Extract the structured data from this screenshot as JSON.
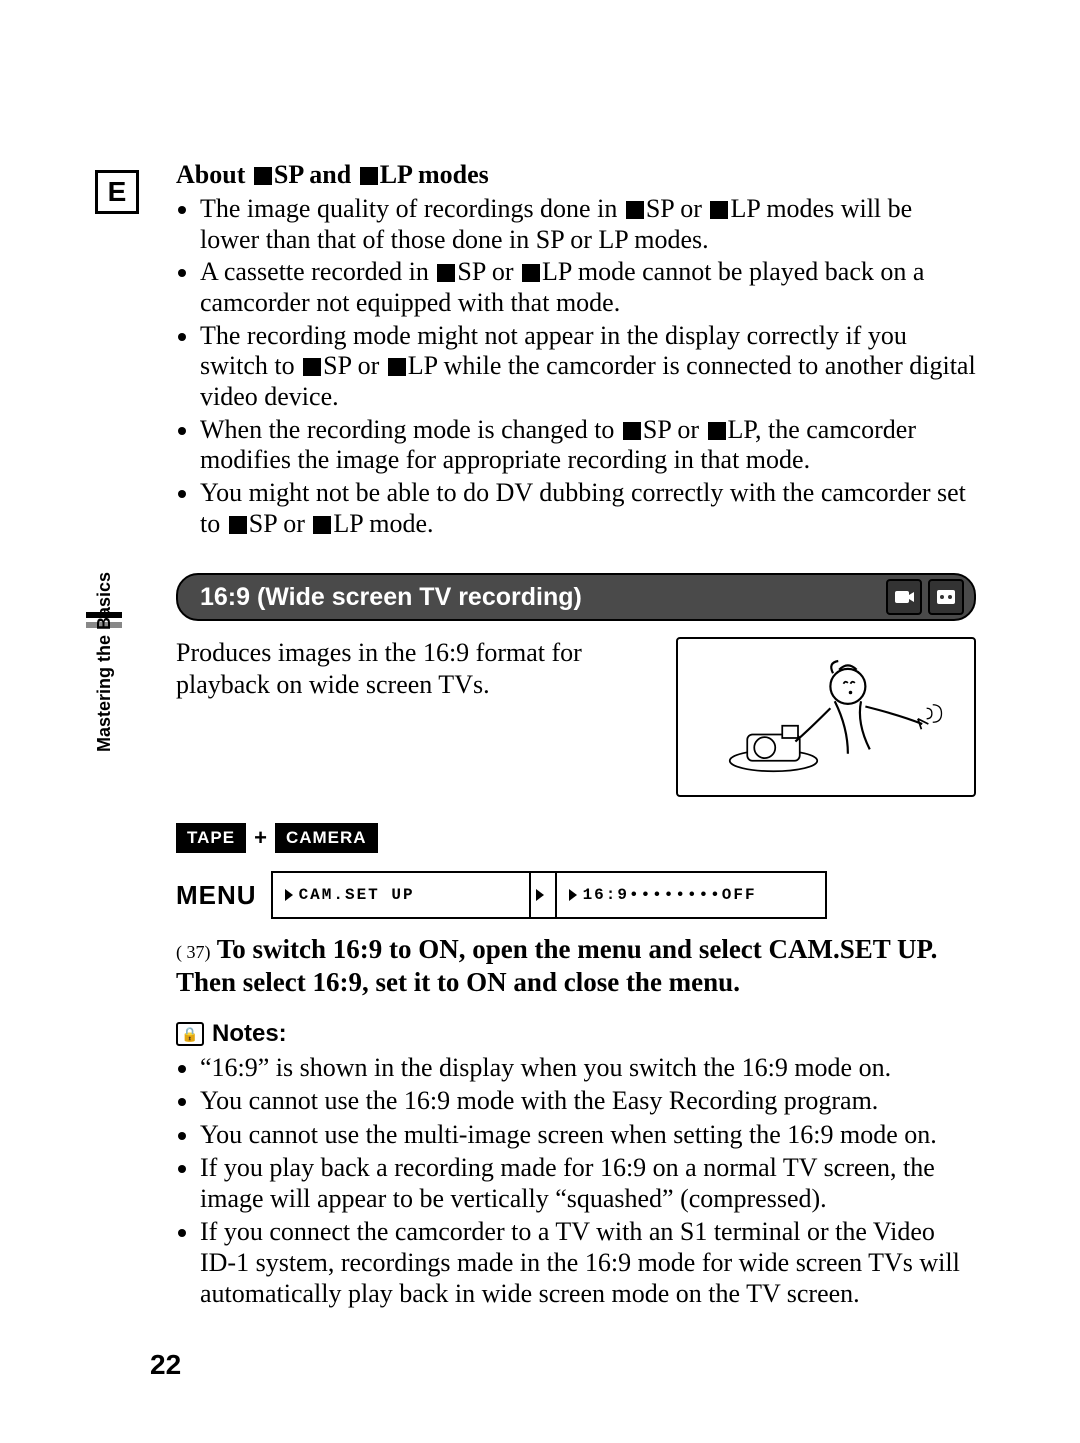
{
  "margin_badge": "E",
  "about": {
    "title_prefix": "About ",
    "title_mid1": "SP and ",
    "title_suffix": "LP modes",
    "bullets": [
      [
        "The image quality of recordings done in ",
        "SP or ",
        "LP modes will be lower than that of those done in SP or LP modes."
      ],
      [
        "A cassette recorded in ",
        "SP or ",
        "LP mode cannot be played back on a camcorder not equipped with that mode."
      ],
      [
        "The recording mode might not appear in the display correctly if you switch to ",
        "SP or ",
        "LP while the camcorder is connected to another digital video device."
      ],
      [
        "When the recording mode is changed to ",
        "SP or ",
        "LP, the camcorder modifies the image for appropriate recording in that mode."
      ],
      [
        "You might not be able to do DV dubbing correctly with the camcorder set to ",
        "SP or ",
        "LP mode."
      ]
    ]
  },
  "feature": {
    "title": "16:9 (Wide screen TV recording)",
    "description": "Produces images in the 16:9 format for playback on wide screen TVs."
  },
  "mode_chips": {
    "tape": "TAPE",
    "plus": "+",
    "camera": "CAMERA"
  },
  "menu": {
    "label": "MENU",
    "path1": "CAM.SET UP",
    "path2": "16:9••••••••OFF"
  },
  "instruction": {
    "ref": "( 37)",
    "text": "To switch 16:9 to ON, open the menu and select CAM.SET UP. Then select 16:9, set it to ON and close the menu."
  },
  "notes": {
    "heading": "Notes:",
    "items": [
      "“16:9” is shown in the display when you switch the 16:9 mode on.",
      "You cannot use the 16:9 mode with the Easy Recording program.",
      "You cannot use the multi-image screen when setting the 16:9 mode on.",
      "If you play back a recording made for 16:9 on a normal TV screen, the image will appear to be vertically “squashed” (compressed).",
      "If you connect the camcorder to a TV with an S1 terminal or the Video ID-1 system, recordings made in the 16:9 mode for wide screen TVs will automatically play back in wide screen mode on the TV screen."
    ]
  },
  "side_tab": "Mastering\nthe Basics",
  "page_number": "22",
  "colors": {
    "bar_bg": "#4a4a4a",
    "text": "#000000",
    "page_bg": "#ffffff"
  }
}
